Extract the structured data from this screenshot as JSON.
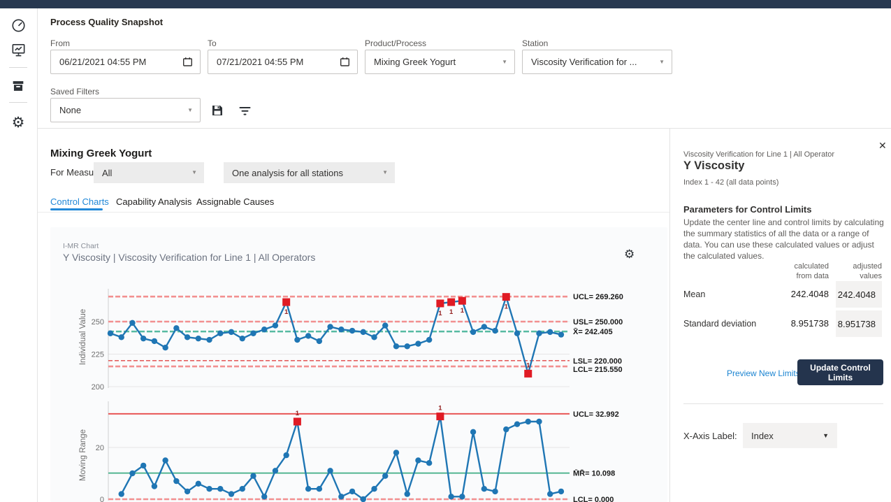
{
  "filters": {
    "title": "Process Quality Snapshot",
    "from": {
      "label": "From",
      "value": "06/21/2021 04:55 PM"
    },
    "to": {
      "label": "To",
      "value": "07/21/2021 04:55 PM"
    },
    "product": {
      "label": "Product/Process",
      "value": "Mixing Greek Yogurt"
    },
    "station": {
      "label": "Station",
      "value": "Viscosity Verification for ..."
    },
    "saved": {
      "label": "Saved Filters",
      "value": "None"
    }
  },
  "sidebar": {
    "icons": [
      "gauge",
      "monitor-chart",
      "archive-box",
      "gear"
    ]
  },
  "main": {
    "section_title": "Mixing Greek Yogurt",
    "for_measure_label": "For Measure:",
    "measure_value": "All",
    "analysis_value": "One analysis for all stations",
    "tabs": [
      {
        "label": "Control Charts",
        "active": true
      },
      {
        "label": "Capability Analysis",
        "active": false
      },
      {
        "label": "Assignable Causes",
        "active": false
      }
    ],
    "chart_type_label": "I-MR Chart",
    "chart_title": "Y Viscosity | Viscosity Verification for Line 1 | All Operators"
  },
  "right_panel": {
    "subtitle": "Viscosity Verification for Line 1 | All Operator",
    "title": "Y Viscosity",
    "index_range": "Index 1 - 42 (all data points)",
    "params_heading": "Parameters for Control Limits",
    "params_description": "Update the center line and control limits by calculating the summary statistics of all the data or a range of data. You can use these calculated values or adjust the calculated values.",
    "col_calc_line1": "calculated",
    "col_calc_line2": "from data",
    "col_adj_line1": "adjusted",
    "col_adj_line2": "values",
    "rows": [
      {
        "label": "Mean",
        "calculated": "242.4048",
        "adjusted": "242.4048"
      },
      {
        "label": "Standard deviation",
        "calculated": "8.951738",
        "adjusted": "8.951738"
      }
    ],
    "preview_link": "Preview New Limits",
    "update_button": "Update Control Limits",
    "xaxis_label": "X-Axis Label:",
    "xaxis_value": "Index"
  },
  "colors": {
    "accent_blue": "#2188d8",
    "topbar_navy": "#273850",
    "series_blue": "#1f76b4",
    "out_of_control_red": "#e01b24",
    "control_limit_salmon": "#f29090",
    "spec_limit_red": "#e04545",
    "center_line_green": "#57bba2",
    "button_navy": "#24344d"
  },
  "chart_data": [
    {
      "type": "line",
      "name": "individual-value-chart",
      "title": "I-MR Chart | Y Viscosity | Viscosity Verification for Line 1 | All Operators",
      "ylabel": "Individual Value",
      "x_start": 1,
      "values": [
        241,
        238,
        249,
        237,
        235,
        230,
        245,
        238,
        237,
        236,
        241,
        242,
        237,
        241,
        244,
        247,
        265,
        236,
        239,
        235,
        246,
        244,
        243,
        242,
        238,
        247,
        231,
        231,
        233,
        236,
        264,
        265,
        266,
        242,
        246,
        243,
        269,
        241,
        210,
        241,
        242,
        240
      ],
      "out_of_control_points": [
        17,
        31,
        32,
        33,
        37,
        39
      ],
      "out_of_control_test": "1",
      "center": 242.405,
      "yticks": [
        250,
        225,
        200
      ],
      "ylim": [
        200,
        275
      ],
      "grid": true,
      "reference_lines": [
        {
          "label": "UCL= 269.260",
          "value": 269.26,
          "style": "control",
          "label_dy": 0
        },
        {
          "label": "USL= 250.000",
          "value": 250.0,
          "style": "control",
          "label_dy": 0
        },
        {
          "label": "X̄= 242.405",
          "value": 242.405,
          "style": "center",
          "label_dy": 0
        },
        {
          "label": "LSL= 220.000",
          "value": 220.0,
          "style": "spec",
          "label_dy": 0
        },
        {
          "label": "LCL= 215.550",
          "value": 215.55,
          "style": "control",
          "label_dy": 4
        }
      ]
    },
    {
      "type": "line",
      "name": "moving-range-chart",
      "ylabel": "Moving Range",
      "x_start": 2,
      "values": [
        2,
        10,
        13,
        5,
        15,
        7,
        3,
        6,
        4,
        4,
        2,
        4,
        9,
        1,
        11,
        17,
        30,
        4,
        4,
        11,
        1,
        3,
        0,
        4,
        9,
        18,
        2,
        15,
        14,
        32,
        1,
        1,
        26,
        4,
        3,
        27,
        29,
        30,
        30,
        2,
        3
      ],
      "out_of_control_points": [
        17,
        30
      ],
      "out_of_control_test": "1",
      "center": 10.098,
      "yticks": [
        20,
        0
      ],
      "ylim": [
        0,
        36
      ],
      "grid": true,
      "reference_lines": [
        {
          "label": "UCL= 32.992",
          "value": 32.992,
          "style": "control_solid",
          "label_dy": 0
        },
        {
          "label": "M̄R̄= 10.098",
          "value": 10.098,
          "style": "center_solid",
          "label_dy": 0
        },
        {
          "label": "LCL= 0.000",
          "value": 0.0,
          "style": "control",
          "label_dy": 0
        }
      ]
    }
  ]
}
